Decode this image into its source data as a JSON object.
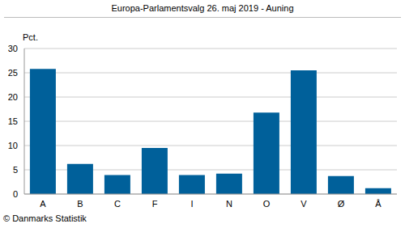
{
  "chart_data": {
    "type": "bar",
    "title": "Europa-Parlamentsvalg 26. maj 2019 - Auning",
    "y_label": "Pct.",
    "source": "© Danmarks Statistik",
    "categories": [
      "A",
      "B",
      "C",
      "F",
      "I",
      "N",
      "O",
      "V",
      "Ø",
      "Å"
    ],
    "values": [
      25.8,
      6.2,
      3.9,
      9.5,
      3.9,
      4.2,
      16.8,
      25.5,
      3.7,
      1.2
    ],
    "color": "#00609a",
    "ylim": [
      0,
      30
    ],
    "yticks": [
      0,
      5,
      10,
      15,
      20,
      25,
      30
    ],
    "grid": true
  }
}
